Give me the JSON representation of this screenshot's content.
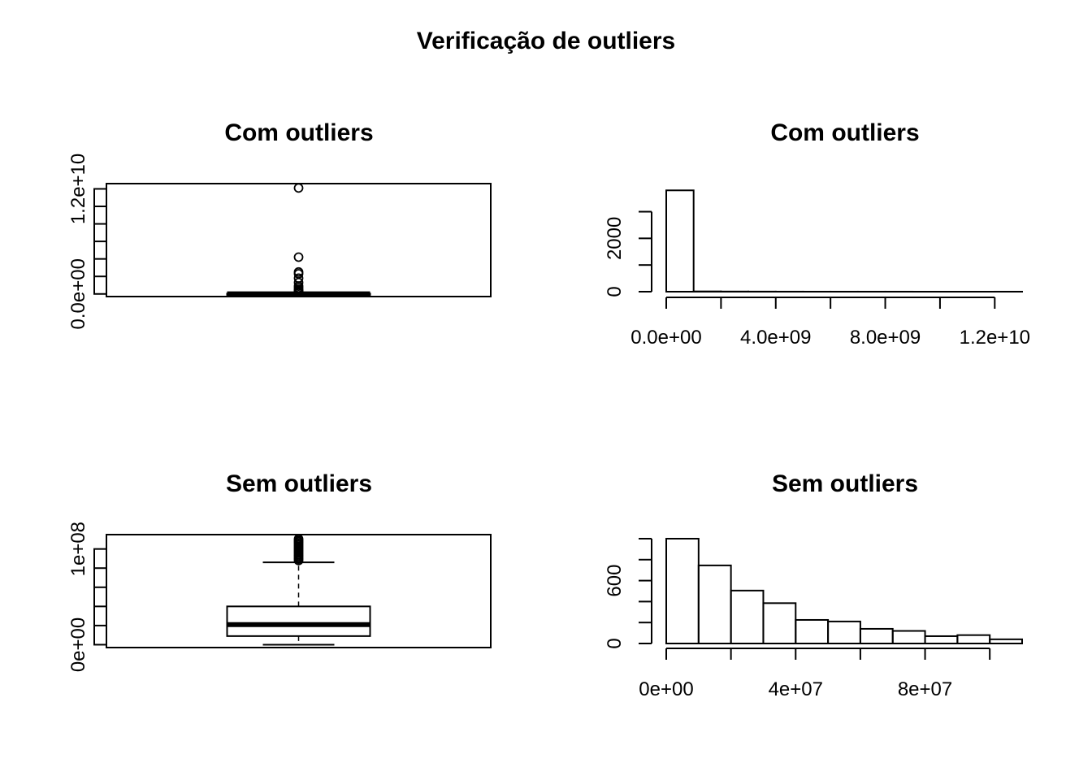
{
  "figure": {
    "title": "Verificação de outliers"
  },
  "chart_data": [
    {
      "type": "boxplot",
      "title": "Com outliers",
      "ylim": [
        -300000000.0,
        12600000000.0
      ],
      "y_tick_labels": [
        {
          "value": 0,
          "label": "0.0e+00"
        },
        {
          "value": 12000000000,
          "label": "1.2e+10"
        }
      ],
      "y_minor_ticks": [
        0,
        2000000000,
        4000000000,
        6000000000,
        8000000000,
        10000000000,
        12000000000
      ],
      "box": {
        "q1": 2000000,
        "median": 12000000,
        "q3": 35000000,
        "whisker_low": 0,
        "whisker_high": 95000000
      },
      "outliers": [
        12100000000,
        4200000000,
        2500000000,
        2300000000,
        1800000000,
        1300000000,
        900000000,
        700000000,
        500000000,
        400000000,
        300000000,
        200000000,
        150000000
      ],
      "grid": false
    },
    {
      "type": "histogram",
      "title": "Com outliers",
      "ylim": [
        0,
        3900
      ],
      "y_tick_labels": [
        {
          "value": 0,
          "label": "0"
        },
        {
          "value": 2000,
          "label": "2000"
        }
      ],
      "y_minor_ticks": [
        0,
        1000,
        2000,
        3000
      ],
      "xlim": [
        0,
        13000000000
      ],
      "x_tick_labels": [
        {
          "value": 0,
          "label": "0.0e+00"
        },
        {
          "value": 4000000000,
          "label": "4.0e+09"
        },
        {
          "value": 8000000000,
          "label": "8.0e+09"
        },
        {
          "value": 12000000000,
          "label": "1.2e+10"
        }
      ],
      "x_minor_ticks": [
        0,
        2000000000,
        4000000000,
        6000000000,
        8000000000,
        10000000000,
        12000000000
      ],
      "bins": [
        0,
        1000000000,
        2000000000,
        3000000000,
        4000000000,
        5000000000,
        6000000000,
        7000000000,
        8000000000,
        9000000000,
        10000000000,
        11000000000,
        12000000000,
        13000000000
      ],
      "counts": [
        3800,
        10,
        6,
        4,
        2,
        1,
        1,
        1,
        1,
        0,
        0,
        0,
        1
      ],
      "grid": false
    },
    {
      "type": "boxplot",
      "title": "Sem outliers",
      "ylim": [
        -3000000,
        115000000
      ],
      "y_tick_labels": [
        {
          "value": 0,
          "label": "0e+00"
        },
        {
          "value": 100000000,
          "label": "1e+08"
        }
      ],
      "y_minor_ticks": [
        0,
        20000000,
        40000000,
        60000000,
        80000000,
        100000000
      ],
      "box": {
        "q1": 9000000,
        "median": 21000000,
        "q3": 40000000,
        "whisker_low": 0,
        "whisker_high": 86000000
      },
      "outliers": [
        88000000,
        89500000,
        91000000,
        92500000,
        94000000,
        95500000,
        97000000,
        98500000,
        100000000,
        101500000,
        103000000,
        104500000,
        106000000,
        107500000,
        109000000,
        110500000
      ],
      "grid": false
    },
    {
      "type": "histogram",
      "title": "Sem outliers",
      "ylim": [
        0,
        1000
      ],
      "y_tick_labels": [
        {
          "value": 0,
          "label": "0"
        },
        {
          "value": 600,
          "label": "600"
        }
      ],
      "y_minor_ticks": [
        0,
        200,
        400,
        600,
        800,
        1000
      ],
      "xlim": [
        0,
        110000000
      ],
      "x_tick_labels": [
        {
          "value": 0,
          "label": "0e+00"
        },
        {
          "value": 40000000,
          "label": "4e+07"
        },
        {
          "value": 80000000,
          "label": "8e+07"
        }
      ],
      "x_minor_ticks": [
        0,
        20000000,
        40000000,
        60000000,
        80000000,
        100000000
      ],
      "bins": [
        0,
        10000000,
        20000000,
        30000000,
        40000000,
        50000000,
        60000000,
        70000000,
        80000000,
        90000000,
        100000000,
        110000000
      ],
      "counts": [
        1000,
        745,
        505,
        385,
        225,
        210,
        140,
        120,
        70,
        80,
        40
      ],
      "grid": false
    }
  ]
}
